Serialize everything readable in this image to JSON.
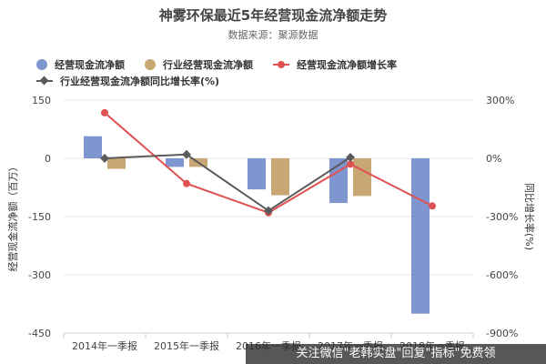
{
  "title": "神雾环保最近5年经营现金流净额走势",
  "subtitle": "数据来源：聚源数据",
  "watermark": "关注微信\"老韩实盘\"回复\"指标\"免费领",
  "colors": {
    "op_cf": "#7f95cf",
    "industry_cf": "#c9a774",
    "op_growth": "#e05252",
    "industry_growth": "#5a5a5a"
  },
  "chart_data": {
    "type": "bar",
    "title": "神雾环保最近5年经营现金流净额走势",
    "subtitle": "数据来源：聚源数据",
    "categories": [
      "2014年一季报",
      "2015年一季报",
      "2016年一季报",
      "2017年一季报",
      "2018年一季报"
    ],
    "ylabel": "经营现金流净额（百万）",
    "y2label": "同比增长率(%)",
    "ylim": [
      -450,
      150
    ],
    "yticks": [
      "150",
      "0",
      "-150",
      "-300",
      "-450"
    ],
    "y2lim": [
      -900,
      300
    ],
    "y2ticks": [
      "300%",
      "0%",
      "-300%",
      "-600%",
      "-900%"
    ],
    "grid": true,
    "legend_position": "top-left",
    "series": [
      {
        "name": "经营现金流净额",
        "kind": "bar",
        "axis": "left",
        "color": "#7f95cf",
        "values": [
          57,
          -22,
          -80,
          -115,
          -400
        ]
      },
      {
        "name": "行业经营现金流净额",
        "kind": "bar",
        "axis": "left",
        "color": "#c9a774",
        "values": [
          -27,
          -22,
          -95,
          -97,
          null
        ]
      },
      {
        "name": "经营现金流净额增长率",
        "kind": "line",
        "axis": "right",
        "color": "#e05252",
        "marker": "circle",
        "values": [
          235,
          -130,
          -280,
          -30,
          -245
        ]
      },
      {
        "name": "行业经营现金流净额同比增长率(%)",
        "kind": "line",
        "axis": "right",
        "color": "#5a5a5a",
        "marker": "diamond",
        "values": [
          0,
          20,
          -270,
          5,
          null
        ]
      }
    ]
  }
}
